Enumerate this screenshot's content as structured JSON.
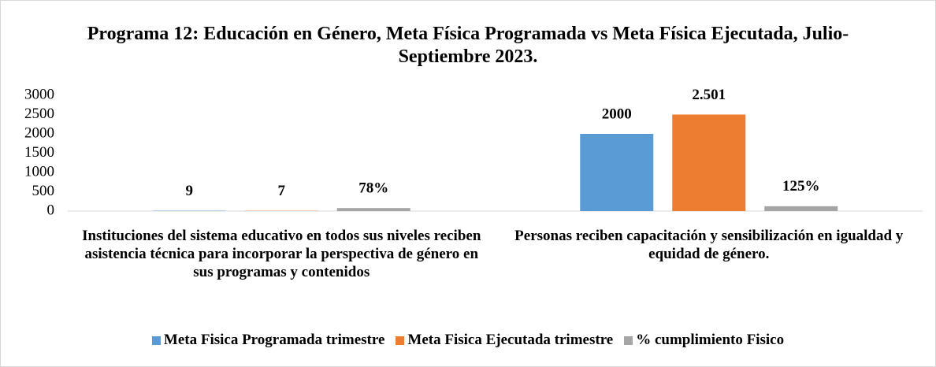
{
  "chart_data": {
    "type": "bar",
    "title": "Programa 12: Educación en Género, Meta Física Programada vs Meta Física Ejecutada, Julio-Septiembre 2023.",
    "categories": [
      "Instituciones del sistema educativo en todos sus niveles reciben asistencia técnica para incorporar la perspectiva de género en sus programas y contenidos",
      "Personas reciben capacitación y sensibilización en igualdad y equidad de género."
    ],
    "series": [
      {
        "name": "Meta Fisica Programada  trimestre",
        "color": "#5b9bd5",
        "values": [
          9,
          2000
        ]
      },
      {
        "name": "Meta Fisica Ejecutada trimestre",
        "color": "#ed7d31",
        "values": [
          7,
          2501
        ],
        "value_labels": [
          "7",
          "2.501"
        ]
      },
      {
        "name": "% cumplimiento Fisico",
        "color": "#a5a5a5",
        "values": [
          78,
          125
        ],
        "value_labels": [
          "78%",
          "125%"
        ]
      }
    ],
    "ylim": [
      0,
      3000
    ],
    "yticks": [
      0,
      500,
      1000,
      1500,
      2000,
      2500,
      3000
    ],
    "grid": false,
    "legend": "bottom"
  }
}
